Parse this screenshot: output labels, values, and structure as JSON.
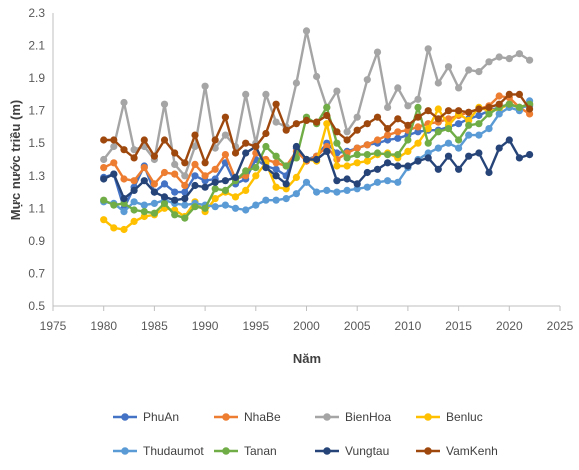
{
  "chart_data": {
    "type": "line",
    "title": "",
    "xlabel": "Năm",
    "ylabel": "Mực nước triều (m)",
    "xlim": [
      1975,
      2025
    ],
    "ylim": [
      0.5,
      2.3
    ],
    "xticks": [
      "1975",
      "1980",
      "1985",
      "1990",
      "1995",
      "2000",
      "2005",
      "2010",
      "2015",
      "2020",
      "2025"
    ],
    "yticks": [
      "0.5",
      "0.7",
      "0.9",
      "1.1",
      "1.3",
      "1.5",
      "1.7",
      "1.9",
      "2.1",
      "2.3"
    ],
    "grid": false,
    "legend_position": "bottom",
    "x": [
      1980,
      1981,
      1982,
      1983,
      1984,
      1985,
      1986,
      1987,
      1988,
      1989,
      1990,
      1991,
      1992,
      1993,
      1994,
      1995,
      1996,
      1997,
      1998,
      1999,
      2000,
      2001,
      2002,
      2003,
      2004,
      2005,
      2006,
      2007,
      2008,
      2009,
      2010,
      2011,
      2012,
      2013,
      2014,
      2015,
      2016,
      2017,
      2018,
      2019,
      2020,
      2021,
      2022
    ],
    "series": [
      {
        "name": "PhuAn",
        "color": "#4472C4",
        "values": [
          1.29,
          1.31,
          1.1,
          1.23,
          1.36,
          1.2,
          1.25,
          1.2,
          1.2,
          1.3,
          1.27,
          1.28,
          1.38,
          1.25,
          1.28,
          1.4,
          1.36,
          1.34,
          1.3,
          1.47,
          1.4,
          1.42,
          1.5,
          1.44,
          1.45,
          1.47,
          1.49,
          1.5,
          1.52,
          1.53,
          1.55,
          1.57,
          1.58,
          1.58,
          1.6,
          1.62,
          1.65,
          1.67,
          1.7,
          1.72,
          1.74,
          1.72,
          1.73
        ]
      },
      {
        "name": "NhaBe",
        "color": "#ED7D31",
        "values": [
          1.35,
          1.38,
          1.28,
          1.27,
          1.35,
          1.25,
          1.32,
          1.31,
          1.24,
          1.37,
          1.3,
          1.34,
          1.43,
          1.28,
          1.3,
          1.44,
          1.4,
          1.38,
          1.36,
          1.45,
          1.39,
          1.42,
          1.48,
          1.4,
          1.44,
          1.47,
          1.49,
          1.52,
          1.55,
          1.57,
          1.58,
          1.6,
          1.62,
          1.63,
          1.65,
          1.67,
          1.69,
          1.71,
          1.73,
          1.79,
          1.78,
          1.72,
          1.68
        ]
      },
      {
        "name": "BienHoa",
        "color": "#A5A5A5",
        "values": [
          1.4,
          1.48,
          1.75,
          1.46,
          1.48,
          1.4,
          1.74,
          1.37,
          1.3,
          1.48,
          1.85,
          1.47,
          1.55,
          1.48,
          1.8,
          1.5,
          1.8,
          1.63,
          1.6,
          1.87,
          2.19,
          1.91,
          1.72,
          1.82,
          1.57,
          1.66,
          1.89,
          2.06,
          1.72,
          1.84,
          1.73,
          1.77,
          2.08,
          1.87,
          1.97,
          1.84,
          1.95,
          1.94,
          2.0,
          2.03,
          2.02,
          2.05,
          2.01
        ]
      },
      {
        "name": "Benluc",
        "color": "#FFC000",
        "values": [
          1.03,
          0.98,
          0.97,
          1.02,
          1.05,
          1.06,
          1.1,
          1.09,
          1.05,
          1.14,
          1.08,
          1.16,
          1.2,
          1.17,
          1.21,
          1.3,
          1.38,
          1.23,
          1.22,
          1.29,
          1.4,
          1.39,
          1.62,
          1.36,
          1.36,
          1.38,
          1.39,
          1.43,
          1.44,
          1.41,
          1.45,
          1.5,
          1.59,
          1.71,
          1.61,
          1.68,
          1.64,
          1.72,
          1.7,
          1.71,
          1.74,
          1.72,
          1.74
        ]
      },
      {
        "name": "Thudaumot",
        "color": "#5B9BD5",
        "values": [
          1.14,
          1.13,
          1.08,
          1.14,
          1.12,
          1.13,
          1.15,
          1.13,
          1.12,
          1.13,
          1.12,
          1.11,
          1.12,
          1.1,
          1.09,
          1.12,
          1.15,
          1.15,
          1.16,
          1.19,
          1.26,
          1.2,
          1.21,
          1.2,
          1.21,
          1.22,
          1.23,
          1.26,
          1.27,
          1.26,
          1.35,
          1.4,
          1.44,
          1.47,
          1.5,
          1.47,
          1.55,
          1.55,
          1.59,
          1.68,
          1.72,
          1.7,
          1.76
        ]
      },
      {
        "name": "Tanan",
        "color": "#70AD47",
        "values": [
          1.15,
          1.12,
          1.13,
          1.09,
          1.08,
          1.07,
          1.13,
          1.06,
          1.04,
          1.11,
          1.1,
          1.22,
          1.21,
          1.27,
          1.33,
          1.35,
          1.48,
          1.42,
          1.36,
          1.41,
          1.66,
          1.62,
          1.72,
          1.5,
          1.41,
          1.43,
          1.43,
          1.44,
          1.43,
          1.43,
          1.52,
          1.72,
          1.5,
          1.57,
          1.59,
          1.52,
          1.61,
          1.62,
          1.68,
          1.72,
          1.74,
          1.72,
          1.74
        ]
      },
      {
        "name": "Vungtau",
        "color": "#264478",
        "values": [
          1.28,
          1.31,
          1.16,
          1.21,
          1.27,
          1.2,
          1.17,
          1.15,
          1.16,
          1.24,
          1.23,
          1.26,
          1.27,
          1.29,
          1.44,
          1.48,
          1.35,
          1.3,
          1.25,
          1.48,
          1.4,
          1.4,
          1.45,
          1.27,
          1.28,
          1.25,
          1.32,
          1.34,
          1.38,
          1.36,
          1.36,
          1.39,
          1.41,
          1.34,
          1.42,
          1.34,
          1.42,
          1.44,
          1.32,
          1.47,
          1.52,
          1.41,
          1.43
        ]
      },
      {
        "name": "VamKenh",
        "color": "#9E480E",
        "values": [
          1.52,
          1.52,
          1.46,
          1.41,
          1.52,
          1.42,
          1.52,
          1.44,
          1.38,
          1.55,
          1.38,
          1.52,
          1.66,
          1.44,
          1.5,
          1.48,
          1.56,
          1.74,
          1.58,
          1.62,
          1.64,
          1.63,
          1.67,
          1.57,
          1.52,
          1.58,
          1.62,
          1.66,
          1.59,
          1.65,
          1.61,
          1.66,
          1.7,
          1.65,
          1.7,
          1.7,
          1.69,
          1.71,
          1.72,
          1.74,
          1.8,
          1.8,
          1.71
        ]
      }
    ]
  }
}
